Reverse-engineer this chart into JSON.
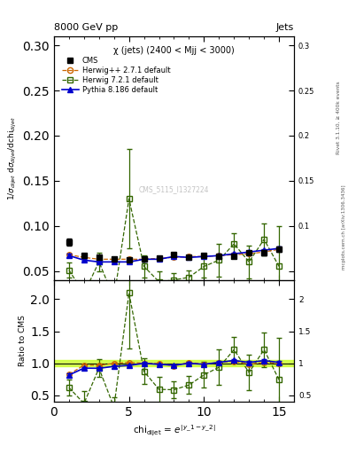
{
  "title_top": "8000 GeV pp",
  "title_right": "Jets",
  "subtitle": "χ (jets) (2400 < Mjj < 3000)",
  "watermark": "CMS_5115_I1327224",
  "right_label_top": "Rivet 3.1.10, ≥ 400k events",
  "right_label_bot": "mcplots.cern.ch [arXiv:1306.3436]",
  "cms_x": [
    1,
    2,
    3,
    4,
    5,
    6,
    7,
    8,
    9,
    10,
    11,
    12,
    13,
    14,
    15
  ],
  "cms_y": [
    0.082,
    0.067,
    0.065,
    0.063,
    0.062,
    0.063,
    0.064,
    0.068,
    0.065,
    0.067,
    0.066,
    0.066,
    0.07,
    0.07,
    0.074
  ],
  "cms_yerr": [
    0.004,
    0.002,
    0.002,
    0.002,
    0.002,
    0.002,
    0.002,
    0.002,
    0.002,
    0.002,
    0.002,
    0.002,
    0.002,
    0.003,
    0.003
  ],
  "hpp_x": [
    1,
    2,
    3,
    4,
    5,
    6,
    7,
    8,
    9,
    10,
    11,
    12,
    13,
    14,
    15
  ],
  "hpp_y": [
    0.068,
    0.065,
    0.063,
    0.063,
    0.063,
    0.063,
    0.064,
    0.065,
    0.066,
    0.066,
    0.067,
    0.068,
    0.069,
    0.071,
    0.074
  ],
  "hpp_yerr": [
    0.001,
    0.001,
    0.001,
    0.001,
    0.001,
    0.001,
    0.001,
    0.001,
    0.001,
    0.001,
    0.001,
    0.001,
    0.001,
    0.001,
    0.001
  ],
  "h721_x": [
    1,
    2,
    3,
    4,
    5,
    6,
    7,
    8,
    9,
    10,
    11,
    12,
    13,
    14,
    15
  ],
  "h721_y": [
    0.051,
    0.025,
    0.06,
    0.02,
    0.13,
    0.055,
    0.038,
    0.04,
    0.043,
    0.055,
    0.062,
    0.08,
    0.06,
    0.085,
    0.055
  ],
  "h721_yerr": [
    0.008,
    0.012,
    0.01,
    0.01,
    0.055,
    0.012,
    0.012,
    0.008,
    0.008,
    0.012,
    0.018,
    0.012,
    0.018,
    0.018,
    0.045
  ],
  "py_x": [
    1,
    2,
    3,
    4,
    5,
    6,
    7,
    8,
    9,
    10,
    11,
    12,
    13,
    14,
    15
  ],
  "py_y": [
    0.067,
    0.062,
    0.06,
    0.06,
    0.06,
    0.063,
    0.063,
    0.066,
    0.065,
    0.066,
    0.067,
    0.069,
    0.071,
    0.073,
    0.075
  ],
  "py_yerr": [
    0.002,
    0.001,
    0.001,
    0.001,
    0.001,
    0.001,
    0.001,
    0.001,
    0.001,
    0.001,
    0.001,
    0.001,
    0.001,
    0.001,
    0.002
  ],
  "ratio_hpp_y": [
    0.829,
    0.97,
    0.969,
    1.0,
    1.016,
    1.0,
    1.0,
    0.956,
    1.015,
    0.985,
    1.015,
    1.03,
    0.986,
    1.014,
    1.0
  ],
  "ratio_hpp_yerr": [
    0.01,
    0.01,
    0.01,
    0.01,
    0.01,
    0.01,
    0.01,
    0.01,
    0.01,
    0.01,
    0.01,
    0.01,
    0.01,
    0.01,
    0.01
  ],
  "ratio_h721_y": [
    0.622,
    0.373,
    0.923,
    0.317,
    2.097,
    0.873,
    0.594,
    0.588,
    0.662,
    0.821,
    0.939,
    1.212,
    0.857,
    1.214,
    0.743
  ],
  "ratio_h721_yerr": [
    0.13,
    0.2,
    0.14,
    0.16,
    0.86,
    0.2,
    0.2,
    0.13,
    0.14,
    0.2,
    0.28,
    0.2,
    0.28,
    0.27,
    0.65
  ],
  "ratio_py_y": [
    0.817,
    0.925,
    0.923,
    0.952,
    0.968,
    1.0,
    0.984,
    0.971,
    1.0,
    0.985,
    1.015,
    1.045,
    1.014,
    1.043,
    1.014
  ],
  "ratio_py_yerr": [
    0.025,
    0.018,
    0.018,
    0.018,
    0.018,
    0.018,
    0.018,
    0.018,
    0.018,
    0.018,
    0.018,
    0.018,
    0.018,
    0.018,
    0.025
  ],
  "cms_color": "#000000",
  "hpp_color": "#cc6600",
  "h721_color": "#336600",
  "py_color": "#0000cc",
  "ylim_main": [
    0.04,
    0.31
  ],
  "ylim_ratio": [
    0.4,
    2.3
  ],
  "xlim": [
    0,
    16
  ],
  "yticks_main": [
    0.05,
    0.1,
    0.15,
    0.2,
    0.25,
    0.3
  ],
  "yticks_ratio": [
    0.5,
    1.0,
    1.5,
    2.0
  ]
}
